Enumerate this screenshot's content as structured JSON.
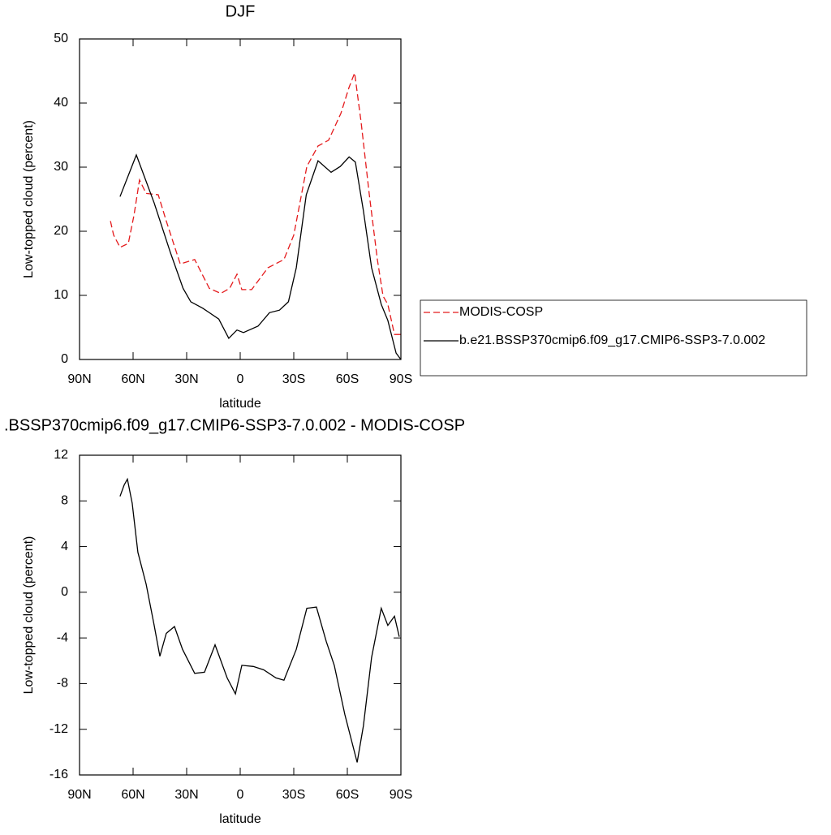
{
  "chart_data": [
    {
      "type": "line",
      "title": "DJF",
      "xlabel": "latitude",
      "ylabel": "Low-topped cloud (percent)",
      "xlim": [
        90,
        -90
      ],
      "xticks": [
        {
          "value": 90,
          "label": "90N"
        },
        {
          "value": 60,
          "label": "60N"
        },
        {
          "value": 30,
          "label": "30N"
        },
        0,
        {
          "value": -30,
          "label": "30S"
        },
        {
          "value": -60,
          "label": "60S"
        },
        {
          "value": -90,
          "label": "90S"
        }
      ],
      "ylim": [
        0,
        50
      ],
      "yticks": [
        0,
        10,
        20,
        30,
        40,
        50
      ],
      "legend": "right",
      "series": [
        {
          "name": "MODIS-COSP",
          "color": "#e41a1c",
          "line_style": "dashed",
          "x": [
            72.7,
            70.9,
            67.3,
            62.7,
            59.5,
            56.4,
            52.7,
            45.9,
            41.4,
            33.6,
            25.5,
            17.3,
            10.9,
            5.9,
            1.8,
            -0.9,
            -6.4,
            -15.5,
            -24.5,
            -30,
            -37.3,
            -43.6,
            -49.5,
            -56.4,
            -60.9,
            -64.1,
            -67.7,
            -72.3,
            -76.8,
            -80,
            -82.7,
            -86.4,
            -90
          ],
          "values": [
            21.6,
            19.4,
            17.5,
            18.1,
            22.5,
            28.0,
            25.9,
            25.7,
            21.6,
            14.9,
            15.6,
            11.1,
            10.3,
            11.1,
            13.3,
            10.9,
            10.9,
            14.3,
            15.6,
            19.4,
            30.1,
            33.3,
            34.2,
            38.4,
            42.4,
            44.7,
            37.1,
            25.7,
            15.6,
            9.9,
            8.6,
            3.9,
            3.9
          ]
        },
        {
          "name": "b.e21.BSSP370cmip6.f09_g17.CMIP6-SSP3-7.0.002",
          "color": "#000000",
          "line_style": "solid",
          "x": [
            67.3,
            58.2,
            48.2,
            39,
            32,
            27.7,
            21,
            12,
            6.4,
            1.8,
            -1.8,
            -10,
            -16.4,
            -22,
            -27,
            -31.4,
            -37,
            -43.6,
            -50.9,
            -56,
            -61,
            -64.5,
            -69,
            -73.6,
            -79,
            -82.7,
            -87.3,
            -90
          ],
          "values": [
            25.4,
            31.9,
            24.4,
            16.6,
            11.1,
            9.0,
            8.0,
            6.3,
            3.3,
            4.6,
            4.2,
            5.2,
            7.3,
            7.7,
            9.0,
            14.3,
            25.7,
            31.0,
            29.2,
            30.1,
            31.6,
            30.8,
            23.2,
            14.3,
            8.6,
            6.1,
            1.0,
            0
          ]
        }
      ]
    },
    {
      "type": "line",
      "title": ".BSSP370cmip6.f09_g17.CMIP6-SSP3-7.0.002 - MODIS-COSP",
      "xlabel": "latitude",
      "ylabel": "Low-topped cloud (percent)",
      "xlim": [
        90,
        -90
      ],
      "xticks": [
        {
          "value": 90,
          "label": "90N"
        },
        {
          "value": 60,
          "label": "60N"
        },
        {
          "value": 30,
          "label": "30N"
        },
        0,
        {
          "value": -30,
          "label": "30S"
        },
        {
          "value": -60,
          "label": "60S"
        },
        {
          "value": -90,
          "label": "90S"
        }
      ],
      "ylim": [
        -16,
        12
      ],
      "yticks": [
        -16,
        -12,
        -8,
        -4,
        0,
        4,
        8,
        12
      ],
      "series": [
        {
          "color": "#000000",
          "line_style": "solid",
          "x": [
            67.3,
            65,
            63.2,
            60.5,
            57.3,
            52.7,
            48.2,
            45,
            41.4,
            36.8,
            32.3,
            25.5,
            20,
            14.1,
            7.3,
            2.7,
            -0.9,
            -7.3,
            -13.2,
            -20,
            -24.5,
            -31.4,
            -37.3,
            -42.7,
            -48.2,
            -52.7,
            -58.6,
            -65.5,
            -69,
            -73.6,
            -79,
            -82.7,
            -86.4,
            -89.1
          ],
          "values": [
            8.4,
            9.4,
            9.9,
            7.8,
            3.5,
            0.7,
            -2.9,
            -5.6,
            -3.6,
            -3.0,
            -5.0,
            -7.1,
            -7.0,
            -4.6,
            -7.5,
            -8.9,
            -6.4,
            -6.5,
            -6.8,
            -7.5,
            -7.7,
            -5.0,
            -1.4,
            -1.3,
            -4.3,
            -6.4,
            -10.7,
            -14.9,
            -11.7,
            -5.7,
            -1.4,
            -2.9,
            -2.1,
            -3.9
          ]
        }
      ]
    }
  ]
}
